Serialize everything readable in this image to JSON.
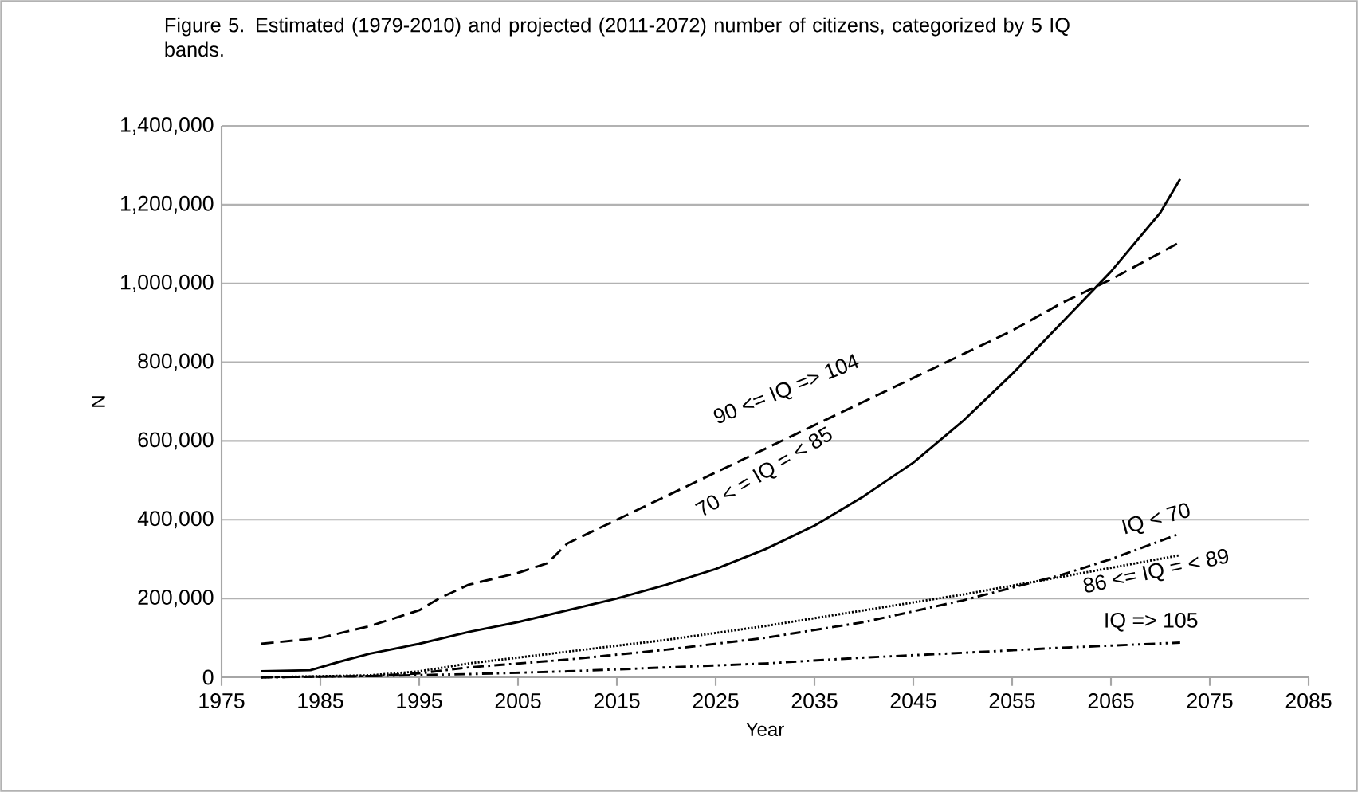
{
  "chart_data": {
    "type": "line",
    "title": "Figure 5. Estimated (1979-2010) and projected (2011-2072) number of citizens, categorized by 5 IQ bands.",
    "xlabel": "Year",
    "ylabel": "N",
    "xlim": [
      1975,
      2085
    ],
    "xticks": [
      1975,
      1985,
      1995,
      2005,
      2015,
      2025,
      2035,
      2045,
      2055,
      2065,
      2075,
      2085
    ],
    "ylim": [
      0,
      1400000
    ],
    "yticks": [
      {
        "value": 0,
        "label": "0"
      },
      {
        "value": 200000,
        "label": "200,000"
      },
      {
        "value": 400000,
        "label": "400,000"
      },
      {
        "value": 600000,
        "label": "600,000"
      },
      {
        "value": 800000,
        "label": "800,000"
      },
      {
        "value": 1000000,
        "label": "1,000,000"
      },
      {
        "value": 1200000,
        "label": "1,200,000"
      },
      {
        "value": 1400000,
        "label": "1,400,000"
      }
    ],
    "grid": "y",
    "marker": "none",
    "series": [
      {
        "name": "90 <= IQ => 104",
        "color": "#000000",
        "line_style": "dashed",
        "x": [
          1979,
          1985,
          1990,
          1995,
          1997,
          2000,
          2005,
          2008,
          2010,
          2015,
          2020,
          2025,
          2030,
          2035,
          2040,
          2045,
          2050,
          2055,
          2060,
          2065,
          2072
        ],
        "values": [
          85000,
          100000,
          130000,
          170000,
          200000,
          235000,
          265000,
          290000,
          340000,
          400000,
          460000,
          520000,
          580000,
          640000,
          700000,
          760000,
          820000,
          880000,
          950000,
          1010000,
          1105000
        ]
      },
      {
        "name": "70 < = IQ = < 85",
        "color": "#000000",
        "line_style": "solid",
        "x": [
          1979,
          1984,
          1987,
          1990,
          1995,
          2000,
          2005,
          2010,
          2015,
          2020,
          2025,
          2030,
          2035,
          2040,
          2045,
          2050,
          2055,
          2060,
          2065,
          2070,
          2072
        ],
        "values": [
          15000,
          18000,
          40000,
          60000,
          85000,
          115000,
          140000,
          170000,
          200000,
          235000,
          275000,
          325000,
          385000,
          460000,
          545000,
          650000,
          770000,
          900000,
          1030000,
          1180000,
          1265000
        ]
      },
      {
        "name": "IQ < 70",
        "color": "#000000",
        "line_style": "dash-dot",
        "x": [
          1979,
          1990,
          1995,
          2000,
          2005,
          2010,
          2020,
          2030,
          2040,
          2050,
          2060,
          2065,
          2072
        ],
        "values": [
          0,
          3000,
          10000,
          25000,
          35000,
          45000,
          70000,
          100000,
          140000,
          195000,
          260000,
          300000,
          365000
        ]
      },
      {
        "name": "86 <= IQ = < 89",
        "color": "#000000",
        "line_style": "dotted",
        "x": [
          1979,
          1990,
          1995,
          2000,
          2005,
          2010,
          2020,
          2030,
          2040,
          2050,
          2060,
          2072
        ],
        "values": [
          0,
          5000,
          15000,
          35000,
          50000,
          65000,
          95000,
          130000,
          170000,
          210000,
          255000,
          310000
        ]
      },
      {
        "name": "IQ => 105",
        "color": "#000000",
        "line_style": "dash-dot-dot",
        "x": [
          1979,
          1990,
          2000,
          2010,
          2020,
          2030,
          2040,
          2050,
          2060,
          2072
        ],
        "values": [
          0,
          3000,
          8000,
          15000,
          25000,
          35000,
          50000,
          62000,
          75000,
          88000
        ]
      }
    ]
  }
}
